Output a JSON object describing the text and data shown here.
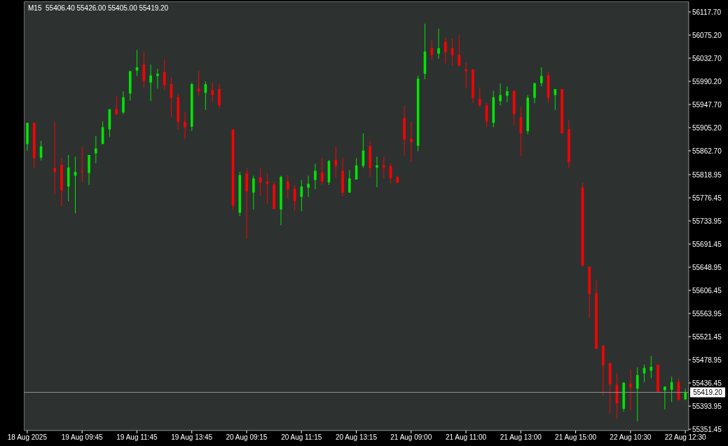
{
  "chart_data": {
    "type": "candlestick",
    "title": "M15  55406.40 55426.00 55405.00 55419.20",
    "categories": [
      "18 Aug 2025",
      null,
      null,
      null,
      null,
      null,
      null,
      null,
      "19 Aug 09:45",
      null,
      null,
      null,
      null,
      null,
      null,
      null,
      "19 Aug 11:45",
      null,
      null,
      null,
      null,
      null,
      null,
      null,
      "19 Aug 13:45",
      null,
      null,
      null,
      null,
      null,
      null,
      null,
      "20 Aug 09:15",
      null,
      null,
      null,
      null,
      null,
      null,
      null,
      "20 Aug 11:15",
      null,
      null,
      null,
      null,
      null,
      null,
      null,
      "20 Aug 13:15",
      null,
      null,
      null,
      null,
      null,
      null,
      null,
      "21 Aug 09:00",
      null,
      null,
      null,
      null,
      null,
      null,
      null,
      "21 Aug 11:00",
      null,
      null,
      null,
      null,
      null,
      null,
      null,
      "21 Aug 13:00",
      null,
      null,
      null,
      null,
      null,
      null,
      null,
      "21 Aug 15:00",
      null,
      null,
      null,
      null,
      null,
      null,
      null,
      "22 Aug 10:30",
      null,
      null,
      null,
      null,
      null,
      null,
      null,
      "22 Aug 12:30"
    ],
    "ohlc": [
      [
        55875,
        55914,
        55863,
        55914
      ],
      [
        55914,
        55914,
        55831,
        55849
      ],
      [
        55850,
        55881,
        55845,
        55871
      ],
      null,
      [
        55831,
        55915,
        55783,
        55824
      ],
      [
        55837,
        55849,
        55761,
        55790
      ],
      [
        55797,
        55855,
        55770,
        55832
      ],
      [
        55817,
        55852,
        55748,
        55824
      ],
      [
        55826,
        55870,
        55805,
        55826
      ],
      [
        55822,
        55855,
        55800,
        55855
      ],
      [
        55858,
        55890,
        55840,
        55867
      ],
      [
        55875,
        55917,
        55875,
        55906
      ],
      [
        55902,
        55939,
        55888,
        55939
      ],
      [
        55939,
        55963,
        55928,
        55930
      ],
      [
        55933,
        55972,
        55930,
        55961
      ],
      [
        55968,
        56009,
        55955,
        56009
      ],
      [
        56010,
        56048,
        56000,
        56016
      ],
      [
        56021,
        56043,
        55978,
        55991
      ],
      [
        55988,
        56021,
        55954,
        56001
      ],
      [
        56000,
        56013,
        55977,
        56004
      ],
      [
        56007,
        56030,
        55974,
        55983
      ],
      [
        55985,
        55998,
        55925,
        55960
      ],
      [
        55961,
        55967,
        55902,
        55916
      ],
      [
        55916,
        55933,
        55884,
        55906
      ],
      [
        55907,
        55988,
        55899,
        55985
      ],
      [
        55977,
        56009,
        55964,
        55972
      ],
      [
        55969,
        55990,
        55938,
        55985
      ],
      [
        55974,
        55988,
        55952,
        55965
      ],
      [
        55976,
        55986,
        55941,
        55946
      ],
      null,
      [
        55902,
        55902,
        55755,
        55762
      ],
      [
        55749,
        55824,
        55743,
        55818
      ],
      [
        55821,
        55831,
        55702,
        55788
      ],
      [
        55786,
        55817,
        55755,
        55812
      ],
      [
        55814,
        55831,
        55780,
        55804
      ],
      [
        55806,
        55821,
        55765,
        55802
      ],
      [
        55801,
        55806,
        55755,
        55756
      ],
      [
        55755,
        55817,
        55726,
        55815
      ],
      [
        55806,
        55818,
        55775,
        55792
      ],
      [
        55793,
        55800,
        55753,
        55770
      ],
      [
        55778,
        55809,
        55752,
        55797
      ],
      [
        55795,
        55817,
        55778,
        55802
      ],
      [
        55809,
        55839,
        55792,
        55826
      ],
      [
        55823,
        55849,
        55800,
        55806
      ],
      [
        55805,
        55846,
        55800,
        55844
      ],
      [
        55846,
        55870,
        55814,
        55835
      ],
      [
        55826,
        55850,
        55780,
        55786
      ],
      [
        55786,
        55827,
        55786,
        55812
      ],
      [
        55810,
        55849,
        55810,
        55836
      ],
      [
        55835,
        55895,
        55831,
        55863
      ],
      [
        55871,
        55881,
        55815,
        55831
      ],
      [
        55832,
        55852,
        55796,
        55836
      ],
      [
        55836,
        55852,
        55812,
        55832
      ],
      [
        55835,
        55840,
        55802,
        55812
      ],
      [
        55815,
        55815,
        55804,
        55804
      ],
      [
        55923,
        55945,
        55854,
        55883
      ],
      [
        55885,
        55916,
        55842,
        55879
      ],
      [
        55872,
        56001,
        55862,
        55995
      ],
      [
        56004,
        56096,
        55994,
        56045
      ],
      [
        56051,
        56067,
        56030,
        56039
      ],
      [
        56041,
        56087,
        56032,
        56051
      ],
      [
        56063,
        56071,
        56023,
        56044
      ],
      [
        56051,
        56069,
        56019,
        56038
      ],
      [
        56039,
        56075,
        56017,
        56019
      ],
      [
        56012,
        56025,
        55978,
        56009
      ],
      [
        56012,
        56012,
        55950,
        55960
      ],
      [
        55958,
        55979,
        55943,
        55946
      ],
      [
        55946,
        55951,
        55906,
        55917
      ],
      [
        55914,
        55973,
        55906,
        55961
      ],
      [
        55954,
        55986,
        55946,
        55965
      ],
      [
        55964,
        55981,
        55952,
        55972
      ],
      [
        55973,
        55973,
        55910,
        55930
      ],
      [
        55924,
        55943,
        55853,
        55895
      ],
      [
        55899,
        55965,
        55893,
        55960
      ],
      [
        55960,
        55987,
        55950,
        55987
      ],
      [
        55987,
        56016,
        55981,
        56000
      ],
      [
        56001,
        56008,
        55950,
        55960
      ],
      [
        55965,
        55976,
        55938,
        55976
      ],
      [
        55976,
        55976,
        55894,
        55895
      ],
      [
        55902,
        55920,
        55831,
        55842
      ],
      null,
      [
        55795,
        55805,
        55650,
        55652
      ],
      [
        55650,
        55650,
        55556,
        55600
      ],
      [
        55601,
        55625,
        55499,
        55499
      ],
      [
        55505,
        55505,
        55413,
        55469
      ],
      [
        55473,
        55473,
        55380,
        55434
      ],
      [
        55433,
        55455,
        55370,
        55399
      ],
      [
        55389,
        55437,
        55384,
        55437
      ],
      [
        55435,
        55461,
        55386,
        55429
      ],
      [
        55426,
        55465,
        55366,
        55451
      ],
      [
        55454,
        55470,
        55438,
        55464
      ],
      [
        55459,
        55486,
        55445,
        55466
      ],
      [
        55470,
        55470,
        55420,
        55420
      ],
      [
        55423,
        55430,
        55388,
        55430
      ],
      [
        55424,
        55448,
        55401,
        55438
      ],
      [
        55438,
        55446,
        55403,
        55406
      ],
      [
        55406.4,
        55426.0,
        55405.0,
        55419.2
      ]
    ],
    "colors": [
      "#00e600",
      "#ff0000",
      "#00e600",
      null,
      "#ff0000",
      "#ff0000",
      "#00e600",
      "#00e600",
      "#ff0000",
      "#00e600",
      "#00e600",
      "#00e600",
      "#00e600",
      "#ff0000",
      "#00e600",
      "#00e600",
      "#00e600",
      "#ff0000",
      "#00e600",
      "#00e600",
      "#ff0000",
      "#ff0000",
      "#ff0000",
      "#ff0000",
      "#00e600",
      "#ff0000",
      "#00e600",
      "#ff0000",
      "#ff0000",
      null,
      "#ff0000",
      "#00e600",
      "#ff0000",
      "#00e600",
      "#ff0000",
      "#ff0000",
      "#ff0000",
      "#00e600",
      "#ff0000",
      "#ff0000",
      "#00e600",
      "#00e600",
      "#00e600",
      "#ff0000",
      "#00e600",
      "#ff0000",
      "#ff0000",
      "#00e600",
      "#00e600",
      "#00e600",
      "#ff0000",
      "#00e600",
      "#ff0000",
      "#ff0000",
      "#ff0000",
      "#ff0000",
      "#ff0000",
      "#00e600",
      "#00e600",
      "#ff0000",
      "#00e600",
      "#ff0000",
      "#ff0000",
      "#ff0000",
      "#ff0000",
      "#ff0000",
      "#ff0000",
      "#ff0000",
      "#00e600",
      "#00e600",
      "#00e600",
      "#ff0000",
      "#ff0000",
      "#00e600",
      "#00e600",
      "#00e600",
      "#ff0000",
      "#00e600",
      "#ff0000",
      "#ff0000",
      null,
      "#ff0000",
      "#ff0000",
      "#ff0000",
      "#ff0000",
      "#ff0000",
      "#ff0000",
      "#00e600",
      "#ff0000",
      "#00e600",
      "#00e600",
      "#00e600",
      "#ff0000",
      "#00e600",
      "#00e600",
      "#ff0000",
      "#00e600"
    ],
    "ylim": [
      55349,
      56137
    ],
    "yticks": [
      {
        "value": 56117.7,
        "label": "56117.70"
      },
      {
        "value": 56075.2,
        "label": "56075.20"
      },
      {
        "value": 56032.7,
        "label": "56032.70"
      },
      {
        "value": 55990.2,
        "label": "55990.20"
      },
      {
        "value": 55947.7,
        "label": "55947.70"
      },
      {
        "value": 55905.2,
        "label": "55905.20"
      },
      {
        "value": 55862.7,
        "label": "55862.70"
      },
      {
        "value": 55818.95,
        "label": "55818.95"
      },
      {
        "value": 55776.45,
        "label": "55776.45"
      },
      {
        "value": 55733.95,
        "label": "55733.95"
      },
      {
        "value": 55691.45,
        "label": "55691.45"
      },
      {
        "value": 55648.95,
        "label": "55648.95"
      },
      {
        "value": 55606.45,
        "label": "55606.45"
      },
      {
        "value": 55563.95,
        "label": "55563.95"
      },
      {
        "value": 55521.45,
        "label": "55521.45"
      },
      {
        "value": 55478.95,
        "label": "55478.95"
      },
      {
        "value": 55436.45,
        "label": "55436.45"
      },
      {
        "value": 55393.95,
        "label": "55393.95"
      },
      {
        "value": 55351.45,
        "label": "55351.45"
      }
    ],
    "ref_lines": [
      {
        "axis": "y",
        "value": 55419.2,
        "label": "55419.20",
        "color": "#8c9494"
      }
    ]
  }
}
